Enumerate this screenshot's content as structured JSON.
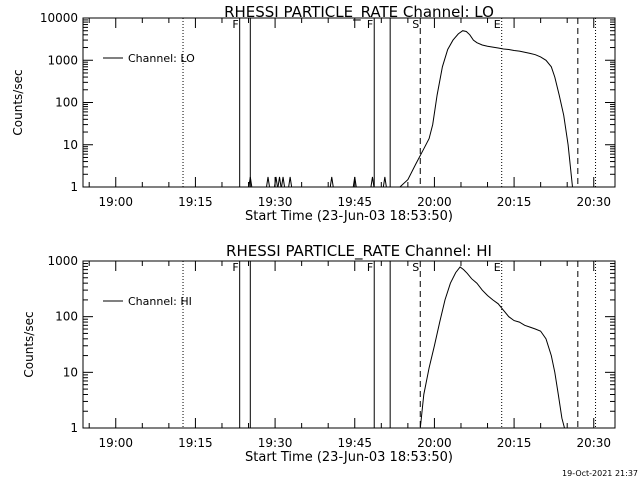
{
  "chart_data": [
    {
      "type": "line",
      "title": "RHESSI PARTICLE_RATE Channel: LO",
      "xlabel": "Start Time (23-Jun-03 18:53:50)",
      "ylabel": "Counts/sec",
      "yscale": "log",
      "ylim": [
        1,
        10000
      ],
      "y_ticks": [
        "1",
        "10",
        "100",
        "1000",
        "10000"
      ],
      "xlim": [
        "18:53:50",
        "20:34:00"
      ],
      "x_ticks": [
        "19:00",
        "19:15",
        "19:30",
        "19:45",
        "20:00",
        "20:15",
        "20:30"
      ],
      "legend": {
        "label": "Channel: LO",
        "position": "top-left"
      },
      "grid": false,
      "series": [
        {
          "name": "Channel: LO",
          "x": [
            "19:36:00",
            "19:37:30",
            "19:38:30",
            "19:39:00",
            "19:40:00",
            "19:41:00",
            "19:42:30",
            "19:44:00",
            "19:45:00",
            "19:46:00",
            "19:47:00",
            "19:48:00",
            "19:49:00",
            "19:50:00",
            "19:51:30",
            "19:53:30",
            "19:55:00",
            "19:56:30",
            "19:58:00",
            "19:59:00",
            "19:59:40",
            "20:00:30",
            "20:01:30",
            "20:02:30",
            "20:03:30",
            "20:04:30",
            "20:05:20",
            "20:06:00",
            "20:06:40",
            "20:07:20",
            "20:08:00",
            "20:09:00",
            "20:10:00",
            "20:11:00",
            "20:12:00",
            "20:13:00",
            "20:14:00",
            "20:15:00",
            "20:16:00",
            "20:17:00",
            "20:18:00",
            "20:19:00",
            "20:20:00",
            "20:21:00",
            "20:22:00",
            "20:22:40",
            "20:23:30",
            "20:24:20",
            "20:25:10",
            "20:26:00"
          ],
          "y": [
            1,
            1,
            1,
            1,
            1,
            1,
            1,
            1,
            1,
            1,
            1,
            1,
            1,
            1,
            1,
            1,
            1.5,
            3.5,
            8,
            14,
            30,
            150,
            700,
            1800,
            3000,
            4200,
            5000,
            4800,
            4000,
            3000,
            2600,
            2300,
            2150,
            2050,
            1950,
            1850,
            1800,
            1700,
            1650,
            1550,
            1450,
            1350,
            1200,
            1000,
            700,
            400,
            150,
            50,
            10,
            1
          ],
          "spikes": [
            "19:25:20",
            "19:28:40",
            "19:30:10",
            "19:30:50",
            "19:31:30",
            "19:32:50",
            "19:40:40",
            "19:45:00",
            "19:48:20",
            "19:50:40"
          ]
        }
      ],
      "markers": [
        {
          "label": "F",
          "time": "19:23:20",
          "line": "solid"
        },
        {
          "label": "",
          "time": "19:25:20",
          "line": "solid"
        },
        {
          "label": "F",
          "time": "19:48:40",
          "line": "solid"
        },
        {
          "label": "",
          "time": "19:51:40",
          "line": "solid"
        },
        {
          "label": "S",
          "time": "19:57:20",
          "line": "dashed"
        },
        {
          "label": "E",
          "time": "20:12:40",
          "line": "dotted"
        },
        {
          "label": "",
          "time": "20:27:00",
          "line": "dashed"
        },
        {
          "label": "",
          "time": "20:30:20",
          "line": "dotted"
        },
        {
          "label": "",
          "time": "19:12:40",
          "line": "dotted"
        }
      ]
    },
    {
      "type": "line",
      "title": "RHESSI PARTICLE_RATE Channel: HI",
      "xlabel": "Start Time (23-Jun-03 18:53:50)",
      "ylabel": "Counts/sec",
      "yscale": "log",
      "ylim": [
        1,
        1000
      ],
      "y_ticks": [
        "1",
        "10",
        "100",
        "1000"
      ],
      "xlim": [
        "18:53:50",
        "20:34:00"
      ],
      "x_ticks": [
        "19:00",
        "19:15",
        "19:30",
        "19:45",
        "20:00",
        "20:15",
        "20:30"
      ],
      "legend": {
        "label": "Channel: HI",
        "position": "top-left"
      },
      "grid": false,
      "series": [
        {
          "name": "Channel: HI",
          "x": [
            "19:57:20",
            "19:58:00",
            "19:59:00",
            "20:00:00",
            "20:01:00",
            "20:02:00",
            "20:03:00",
            "20:04:00",
            "20:04:50",
            "20:05:30",
            "20:06:10",
            "20:07:00",
            "20:08:00",
            "20:09:00",
            "20:10:00",
            "20:11:00",
            "20:12:00",
            "20:13:00",
            "20:14:00",
            "20:15:00",
            "20:16:00",
            "20:17:00",
            "20:18:00",
            "20:19:00",
            "20:20:00",
            "20:21:00",
            "20:22:00",
            "20:22:40",
            "20:23:20",
            "20:24:00",
            "20:24:30"
          ],
          "y": [
            1,
            4,
            12,
            30,
            80,
            200,
            400,
            620,
            780,
            700,
            600,
            480,
            400,
            300,
            240,
            200,
            170,
            130,
            100,
            85,
            80,
            70,
            65,
            60,
            55,
            40,
            20,
            10,
            4,
            1.5,
            1
          ],
          "spikes": []
        }
      ],
      "markers": [
        {
          "label": "F",
          "time": "19:23:20",
          "line": "solid"
        },
        {
          "label": "",
          "time": "19:25:20",
          "line": "solid"
        },
        {
          "label": "F",
          "time": "19:48:40",
          "line": "solid"
        },
        {
          "label": "",
          "time": "19:51:40",
          "line": "solid"
        },
        {
          "label": "S",
          "time": "19:57:20",
          "line": "dashed"
        },
        {
          "label": "E",
          "time": "20:12:40",
          "line": "dotted"
        },
        {
          "label": "",
          "time": "20:27:00",
          "line": "dashed"
        },
        {
          "label": "",
          "time": "20:30:20",
          "line": "dotted"
        },
        {
          "label": "",
          "time": "19:12:40",
          "line": "dotted"
        }
      ]
    }
  ],
  "footer": {
    "date_stamp": "19-Oct-2021 21:37"
  },
  "colors": {
    "background": "#ffffff",
    "foreground": "#000000"
  }
}
